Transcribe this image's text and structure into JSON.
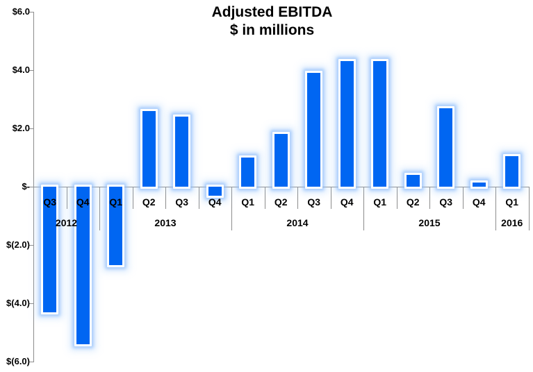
{
  "title": {
    "line1": "Adjusted EBITDA",
    "line2": "$ in millions"
  },
  "chart_data": {
    "type": "bar",
    "title": "Adjusted EBITDA",
    "subtitle": "$ in millions",
    "unit": "USD millions",
    "y_axis": {
      "min": -6,
      "max": 6,
      "tick_step": 2,
      "ticks": [
        6,
        4,
        2,
        0,
        -2,
        -4,
        -6
      ],
      "tick_labels": [
        "$6.0",
        "$4.0",
        "$2.0",
        "$-",
        "$(2.0)",
        "$(4.0)",
        "$(6.0)"
      ],
      "grid": false
    },
    "x_axis": {
      "tick_level": "quarter",
      "group_level": "year"
    },
    "legend": "none",
    "points": [
      {
        "year": "2012",
        "quarter": "Q3",
        "value": -4.3
      },
      {
        "year": "2012",
        "quarter": "Q4",
        "value": -5.4
      },
      {
        "year": "2013",
        "quarter": "Q1",
        "value": -2.7
      },
      {
        "year": "2013",
        "quarter": "Q2",
        "value": 2.6
      },
      {
        "year": "2013",
        "quarter": "Q3",
        "value": 2.4
      },
      {
        "year": "2013",
        "quarter": "Q4",
        "value": -0.3
      },
      {
        "year": "2014",
        "quarter": "Q1",
        "value": 1.0
      },
      {
        "year": "2014",
        "quarter": "Q2",
        "value": 1.8
      },
      {
        "year": "2014",
        "quarter": "Q3",
        "value": 3.9
      },
      {
        "year": "2014",
        "quarter": "Q4",
        "value": 4.3
      },
      {
        "year": "2015",
        "quarter": "Q1",
        "value": 4.3
      },
      {
        "year": "2015",
        "quarter": "Q2",
        "value": 0.4
      },
      {
        "year": "2015",
        "quarter": "Q3",
        "value": 2.7
      },
      {
        "year": "2015",
        "quarter": "Q4",
        "value": 0.15
      },
      {
        "year": "2016",
        "quarter": "Q1",
        "value": 1.05
      }
    ]
  },
  "colors": {
    "bar": "#0066F2",
    "bar_border": "#FFFFFF",
    "bar_glow": "#9CC2F8",
    "axis": "#8C8C8C",
    "text": "#000000",
    "background": "#FFFFFF"
  }
}
